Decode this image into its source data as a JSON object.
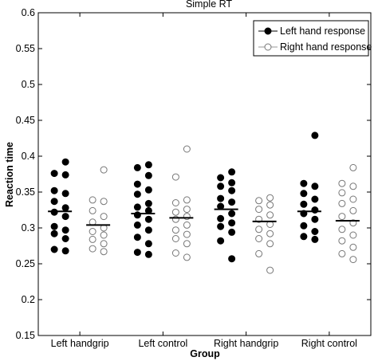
{
  "chart_data": {
    "type": "scatter",
    "title": "Simple RT",
    "xlabel": "Group",
    "ylabel": "Reaction time",
    "ylim": [
      0.15,
      0.6
    ],
    "yticks": [
      0.15,
      0.2,
      0.25,
      0.3,
      0.35,
      0.4,
      0.45,
      0.5,
      0.55,
      0.6
    ],
    "ytick_labels": [
      "0.15",
      "0.2",
      "0.25",
      "0.3",
      "0.35",
      "0.4",
      "0.45",
      "0.5",
      "0.55",
      "0.6"
    ],
    "categories": [
      "Left handgrip",
      "Left control",
      "Right handgrip",
      "Right control"
    ],
    "legend": {
      "placement": "top-right",
      "entries": [
        "Left hand response",
        "Right hand response"
      ]
    },
    "series": [
      {
        "name": "Left hand response",
        "marker": "filled",
        "color": "#000000",
        "groups": [
          {
            "values": [
              0.392,
              0.376,
              0.374,
              0.352,
              0.348,
              0.337,
              0.328,
              0.322,
              0.316,
              0.302,
              0.297,
              0.292,
              0.285,
              0.27,
              0.268
            ],
            "median": 0.323
          },
          {
            "values": [
              0.388,
              0.384,
              0.373,
              0.361,
              0.353,
              0.347,
              0.334,
              0.329,
              0.324,
              0.318,
              0.312,
              0.304,
              0.297,
              0.287,
              0.278,
              0.266,
              0.263
            ],
            "median": 0.32
          },
          {
            "values": [
              0.378,
              0.37,
              0.363,
              0.358,
              0.352,
              0.341,
              0.336,
              0.33,
              0.32,
              0.313,
              0.307,
              0.302,
              0.294,
              0.282,
              0.257
            ],
            "median": 0.326
          },
          {
            "values": [
              0.429,
              0.362,
              0.358,
              0.348,
              0.34,
              0.333,
              0.325,
              0.32,
              0.312,
              0.303,
              0.295,
              0.288,
              0.284
            ],
            "median": 0.323
          }
        ]
      },
      {
        "name": "Right hand response",
        "marker": "open",
        "color": "#000000",
        "groups": [
          {
            "values": [
              0.381,
              0.339,
              0.337,
              0.324,
              0.316,
              0.308,
              0.3,
              0.295,
              0.29,
              0.284,
              0.278,
              0.271,
              0.267
            ],
            "median": 0.304
          },
          {
            "values": [
              0.41,
              0.371,
              0.339,
              0.335,
              0.326,
              0.322,
              0.316,
              0.312,
              0.304,
              0.297,
              0.291,
              0.285,
              0.278,
              0.265,
              0.259
            ],
            "median": 0.314
          },
          {
            "values": [
              0.342,
              0.338,
              0.332,
              0.326,
              0.318,
              0.312,
              0.305,
              0.298,
              0.292,
              0.285,
              0.278,
              0.264,
              0.241
            ],
            "median": 0.309
          },
          {
            "values": [
              0.384,
              0.362,
              0.358,
              0.349,
              0.34,
              0.334,
              0.324,
              0.316,
              0.307,
              0.298,
              0.29,
              0.282,
              0.273,
              0.264,
              0.256
            ],
            "median": 0.31
          }
        ]
      }
    ]
  }
}
